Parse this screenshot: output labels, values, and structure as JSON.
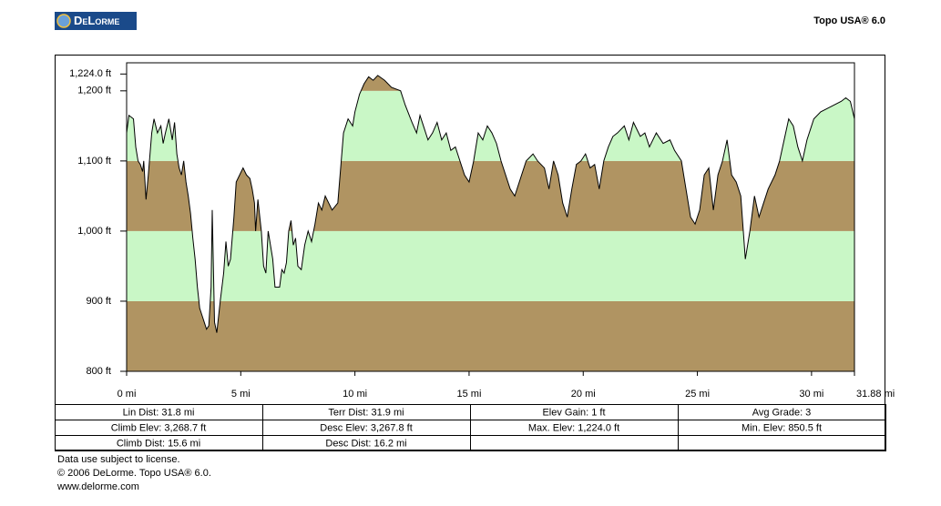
{
  "header": {
    "logo": "DeLorme",
    "product": "Topo USA® 6.0"
  },
  "chart_data": {
    "type": "area",
    "x": [
      0.0,
      0.1,
      0.3,
      0.4,
      0.5,
      0.6,
      0.7,
      0.75,
      0.85,
      0.95,
      1.1,
      1.2,
      1.35,
      1.5,
      1.6,
      1.7,
      1.85,
      2.0,
      2.1,
      2.2,
      2.3,
      2.4,
      2.5,
      2.6,
      2.7,
      2.8,
      2.9,
      3.0,
      3.1,
      3.2,
      3.3,
      3.4,
      3.5,
      3.6,
      3.7,
      3.75,
      3.85,
      3.95,
      4.1,
      4.25,
      4.35,
      4.45,
      4.55,
      4.7,
      4.8,
      4.95,
      5.1,
      5.25,
      5.4,
      5.5,
      5.6,
      5.65,
      5.75,
      5.9,
      6.0,
      6.1,
      6.2,
      6.4,
      6.5,
      6.7,
      6.8,
      6.9,
      7.0,
      7.1,
      7.2,
      7.3,
      7.4,
      7.5,
      7.65,
      7.8,
      7.95,
      8.1,
      8.25,
      8.4,
      8.55,
      8.7,
      8.85,
      9.0,
      9.25,
      9.5,
      9.7,
      9.9,
      10.0,
      10.2,
      10.4,
      10.6,
      10.8,
      11.0,
      11.3,
      11.6,
      12.0,
      12.2,
      12.5,
      12.7,
      12.85,
      13.0,
      13.2,
      13.4,
      13.6,
      13.8,
      14.0,
      14.2,
      14.4,
      14.6,
      14.8,
      15.0,
      15.2,
      15.4,
      15.6,
      15.8,
      16.0,
      16.2,
      16.4,
      16.6,
      16.8,
      17.0,
      17.3,
      17.5,
      17.8,
      18.0,
      18.3,
      18.5,
      18.7,
      18.9,
      19.1,
      19.3,
      19.5,
      19.7,
      19.9,
      20.1,
      20.3,
      20.5,
      20.7,
      20.9,
      21.1,
      21.3,
      21.5,
      21.8,
      22.0,
      22.2,
      22.5,
      22.7,
      22.9,
      23.2,
      23.5,
      23.8,
      24.0,
      24.3,
      24.5,
      24.7,
      24.9,
      25.1,
      25.3,
      25.5,
      25.7,
      25.9,
      26.1,
      26.3,
      26.5,
      26.7,
      26.9,
      27.1,
      27.3,
      27.5,
      27.7,
      27.9,
      28.1,
      28.4,
      28.6,
      28.8,
      29.0,
      29.2,
      29.4,
      29.6,
      29.8,
      30.1,
      30.4,
      30.7,
      31.0,
      31.3,
      31.5,
      31.7,
      31.88
    ],
    "values": [
      1140,
      1165,
      1160,
      1120,
      1100,
      1095,
      1085,
      1100,
      1045,
      1080,
      1140,
      1160,
      1140,
      1150,
      1125,
      1140,
      1160,
      1130,
      1155,
      1110,
      1090,
      1080,
      1100,
      1070,
      1050,
      1025,
      990,
      960,
      920,
      890,
      880,
      870,
      860,
      865,
      920,
      1030,
      870,
      855,
      900,
      940,
      985,
      950,
      960,
      1020,
      1070,
      1080,
      1090,
      1080,
      1075,
      1060,
      1040,
      1000,
      1045,
      1000,
      950,
      940,
      1000,
      960,
      920,
      920,
      945,
      940,
      955,
      1000,
      1015,
      980,
      990,
      950,
      945,
      980,
      1000,
      985,
      1010,
      1040,
      1030,
      1050,
      1040,
      1030,
      1040,
      1140,
      1160,
      1150,
      1170,
      1195,
      1210,
      1220,
      1215,
      1222,
      1215,
      1205,
      1200,
      1180,
      1155,
      1140,
      1165,
      1150,
      1130,
      1140,
      1155,
      1130,
      1140,
      1115,
      1120,
      1100,
      1080,
      1070,
      1100,
      1140,
      1130,
      1150,
      1140,
      1125,
      1100,
      1080,
      1060,
      1050,
      1080,
      1100,
      1110,
      1100,
      1090,
      1060,
      1100,
      1080,
      1040,
      1020,
      1060,
      1095,
      1100,
      1110,
      1090,
      1095,
      1060,
      1100,
      1120,
      1135,
      1140,
      1150,
      1130,
      1155,
      1135,
      1140,
      1120,
      1140,
      1125,
      1130,
      1115,
      1100,
      1060,
      1020,
      1010,
      1030,
      1080,
      1090,
      1030,
      1080,
      1100,
      1130,
      1080,
      1070,
      1050,
      960,
      1000,
      1050,
      1020,
      1040,
      1060,
      1080,
      1100,
      1130,
      1160,
      1150,
      1120,
      1100,
      1130,
      1160,
      1170,
      1175,
      1180,
      1185,
      1190,
      1185,
      1160
    ],
    "xlim": [
      0,
      31.88
    ],
    "ylim": [
      800,
      1240
    ],
    "xticks": [
      {
        "value": 0,
        "label": "0 mi"
      },
      {
        "value": 5,
        "label": "5 mi"
      },
      {
        "value": 10,
        "label": "10 mi"
      },
      {
        "value": 15,
        "label": "15 mi"
      },
      {
        "value": 20,
        "label": "20 mi"
      },
      {
        "value": 25,
        "label": "25 mi"
      },
      {
        "value": 30,
        "label": "30 mi"
      },
      {
        "value": 31.88,
        "label": "31.88 mi"
      }
    ],
    "yticks": [
      {
        "value": 800,
        "label": "800 ft"
      },
      {
        "value": 900,
        "label": "900 ft"
      },
      {
        "value": 1000,
        "label": "1,000 ft"
      },
      {
        "value": 1100,
        "label": "1,100 ft"
      },
      {
        "value": 1200,
        "label": "1,200 ft"
      },
      {
        "value": 1224,
        "label": "1,224.0 ft"
      }
    ],
    "band_step": 100,
    "band_colors": [
      "#b09462",
      "#c9f7c6"
    ],
    "line_color": "#000000"
  },
  "table": {
    "rows": [
      [
        "Lin Dist: 31.8 mi",
        "Terr Dist: 31.9 mi",
        "Elev Gain: 1 ft",
        "Avg Grade: 3"
      ],
      [
        "Climb Elev: 3,268.7 ft",
        "Desc Elev: 3,267.8 ft",
        "Max. Elev: 1,224.0 ft",
        "Min. Elev: 850.5 ft"
      ],
      [
        "Climb Dist: 15.6 mi",
        "Desc Dist: 16.2 mi"
      ]
    ]
  },
  "footer": {
    "lines": [
      "Data use subject to license.",
      "© 2006 DeLorme. Topo USA® 6.0.",
      "www.delorme.com"
    ]
  }
}
